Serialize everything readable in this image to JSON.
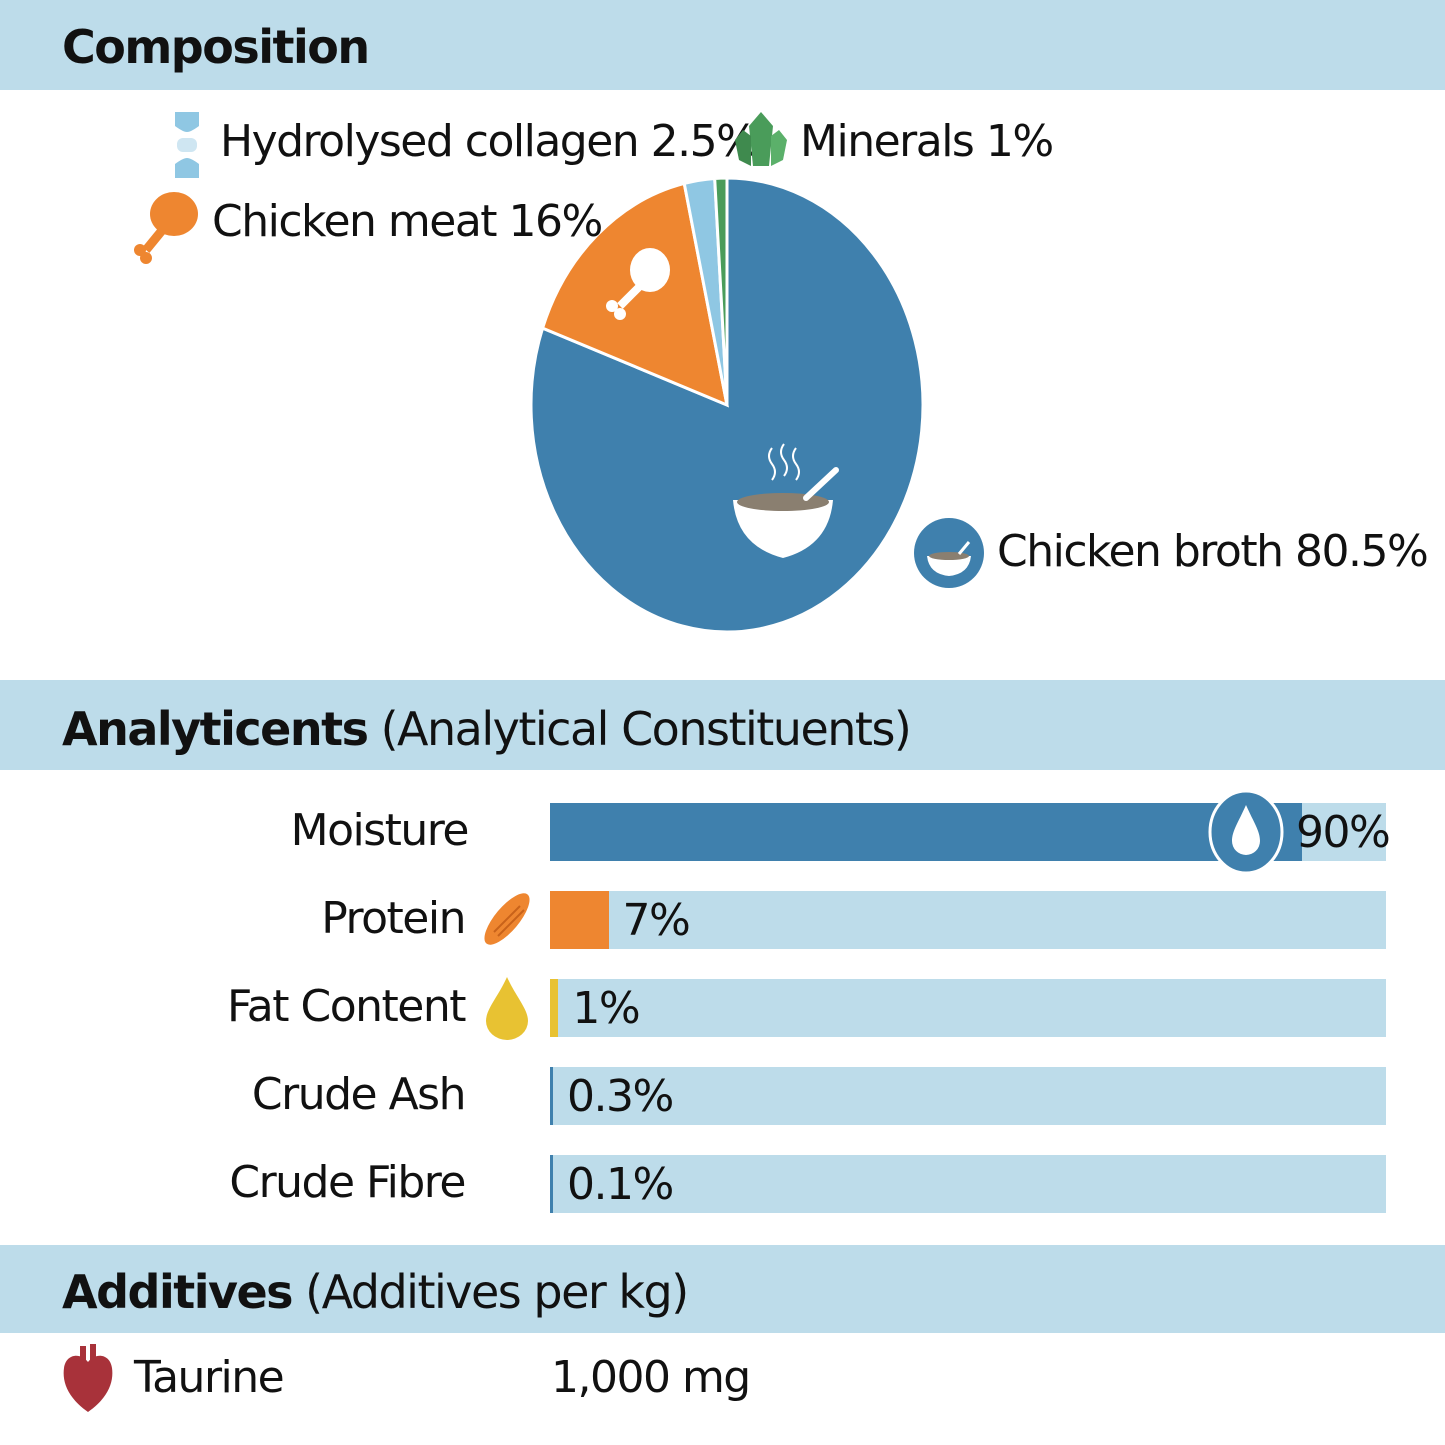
{
  "composition": {
    "title": "Composition",
    "items": [
      {
        "label": "Chicken broth 80.5%",
        "name": "Chicken broth",
        "value": 80.5,
        "color": "#3f80ad",
        "icon": "soup-bowl-icon"
      },
      {
        "label": "Chicken meat 16%",
        "name": "Chicken meat",
        "value": 16,
        "color": "#ee8630",
        "icon": "chicken-leg-icon"
      },
      {
        "label": "Hydrolysed collagen 2.5%",
        "name": "Hydrolysed collagen",
        "value": 2.5,
        "color": "#8fc7e3",
        "icon": "joint-icon"
      },
      {
        "label": "Minerals 1%",
        "name": "Minerals",
        "value": 1,
        "color": "#4a9c5a",
        "icon": "crystal-icon"
      }
    ]
  },
  "analytical": {
    "title": "Analyticents",
    "subtitle": "(Analytical Constituents)",
    "track_color": "#bddcea",
    "rows": [
      {
        "label": "Moisture",
        "value": 90,
        "value_label": "90%",
        "color": "#3f80ad",
        "icon": "water-drop-icon"
      },
      {
        "label": "Protein",
        "value": 7,
        "value_label": "7%",
        "color": "#ee8630",
        "icon": "muscle-icon"
      },
      {
        "label": "Fat Content",
        "value": 1,
        "value_label": "1%",
        "color": "#e8c232",
        "icon": "oil-drop-icon"
      },
      {
        "label": "Crude Ash",
        "value": 0.3,
        "value_label": "0.3%",
        "color": "#3f80ad"
      },
      {
        "label": "Crude Fibre",
        "value": 0.1,
        "value_label": "0.1%",
        "color": "#3f80ad"
      }
    ]
  },
  "additives": {
    "title": "Additives",
    "subtitle": "(Additives per kg)",
    "items": [
      {
        "label": "Taurine",
        "amount": "1,000 mg",
        "icon": "heart-icon"
      }
    ]
  },
  "chart_data": [
    {
      "type": "pie",
      "title": "Composition",
      "categories": [
        "Chicken broth",
        "Chicken meat",
        "Hydrolysed collagen",
        "Minerals"
      ],
      "values": [
        80.5,
        16,
        2.5,
        1
      ]
    },
    {
      "type": "bar",
      "orientation": "horizontal",
      "title": "Analyticents (Analytical Constituents)",
      "categories": [
        "Moisture",
        "Protein",
        "Fat Content",
        "Crude Ash",
        "Crude Fibre"
      ],
      "values": [
        90,
        7,
        1,
        0.3,
        0.1
      ],
      "xlim": [
        0,
        100
      ]
    }
  ]
}
